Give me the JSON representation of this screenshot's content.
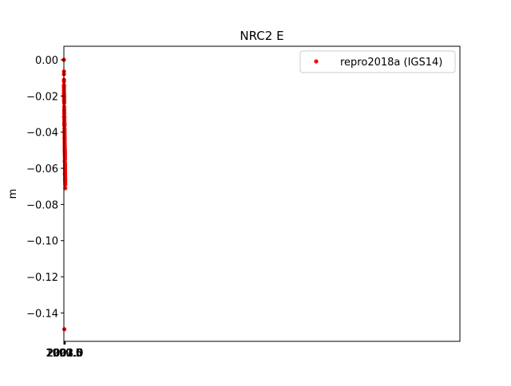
{
  "chart_data": {
    "type": "scatter",
    "title": "NRC2 E",
    "xlabel": "",
    "ylabel": "m",
    "xlim": [
      1999.43,
      3003.03
    ],
    "ylim": [
      -0.1557,
      0.0075
    ],
    "xticks": [
      1999.5,
      2000.0,
      2000.5,
      2001.0,
      2001.5,
      2002.0,
      2002.5,
      2003.0
    ],
    "xtick_labels": [
      "1999.5",
      "2000.0",
      "2000.5",
      "2001.0",
      "2001.5",
      "2002.0",
      "2002.5",
      "2003.0"
    ],
    "yticks": [
      0.0,
      -0.02,
      -0.04,
      -0.06,
      -0.08,
      -0.1,
      -0.12,
      -0.14
    ],
    "ytick_labels": [
      "0.00",
      "−0.02",
      "−0.04",
      "−0.06",
      "−0.08",
      "−0.10",
      "−0.12",
      "−0.14"
    ],
    "grid": false,
    "legend_position": "top-right",
    "color": "#ff0000",
    "series": [
      {
        "name": "repro2018a (IGS14)",
        "x": [
          1999.58,
          1999.6,
          1999.62,
          1999.64,
          1999.66,
          1999.68,
          1999.7,
          1999.72,
          1999.74,
          1999.76,
          1999.8,
          1999.85,
          1999.9,
          1999.95,
          2000.0,
          2000.05,
          2000.1,
          2000.15,
          2000.2,
          2000.25,
          2000.3,
          2000.35,
          2000.4,
          2000.45,
          2000.5,
          2000.55,
          2000.6,
          2000.65,
          2000.7,
          2000.75,
          2000.8,
          2000.85,
          2000.9,
          2000.95,
          2001.0,
          2001.05,
          2001.1,
          2001.15,
          2001.2,
          2001.25,
          2001.3,
          2001.35,
          2001.4,
          2001.45,
          2001.5,
          2001.55,
          2001.6,
          2001.65,
          2001.7,
          2001.75,
          2001.8,
          2001.85,
          2001.9,
          2001.95,
          2002.0,
          2002.05,
          2002.1,
          2002.15,
          2002.2,
          2002.25,
          2002.3,
          2002.35,
          2002.4,
          2002.45,
          2002.5,
          2002.55,
          2002.6,
          2002.65,
          2002.7,
          2002.75,
          2002.8,
          2002.85,
          2002.9,
          1999.58,
          1999.58,
          1999.62,
          1999.66,
          1999.68,
          1999.75,
          2000.68,
          2000.9,
          2000.98,
          2001.58,
          2001.97,
          2001.98,
          2002.9
        ],
        "y": [
          -0.015,
          -0.0145,
          -0.014,
          -0.0145,
          -0.015,
          -0.016,
          -0.017,
          -0.018,
          -0.0185,
          -0.019,
          -0.0195,
          -0.02,
          -0.0205,
          -0.02,
          -0.021,
          -0.022,
          -0.0225,
          -0.023,
          -0.024,
          -0.026,
          -0.0275,
          -0.028,
          -0.029,
          -0.03,
          -0.0315,
          -0.032,
          -0.033,
          -0.034,
          -0.035,
          -0.0355,
          -0.036,
          -0.0365,
          -0.036,
          -0.036,
          -0.038,
          -0.039,
          -0.04,
          -0.041,
          -0.042,
          -0.043,
          -0.0435,
          -0.044,
          -0.045,
          -0.046,
          -0.047,
          -0.048,
          -0.0485,
          -0.049,
          -0.049,
          -0.05,
          -0.05,
          -0.051,
          -0.051,
          -0.052,
          -0.052,
          -0.053,
          -0.053,
          -0.054,
          -0.055,
          -0.057,
          -0.058,
          -0.059,
          -0.06,
          -0.061,
          -0.062,
          -0.063,
          -0.064,
          -0.065,
          -0.066,
          -0.0665,
          -0.067,
          -0.068,
          -0.069,
          0.0,
          -0.008,
          -0.012,
          -0.011,
          -0.0065,
          -0.0315,
          -0.149,
          -0.035,
          -0.0315,
          -0.056,
          -0.06,
          -0.063,
          -0.071
        ]
      }
    ]
  }
}
